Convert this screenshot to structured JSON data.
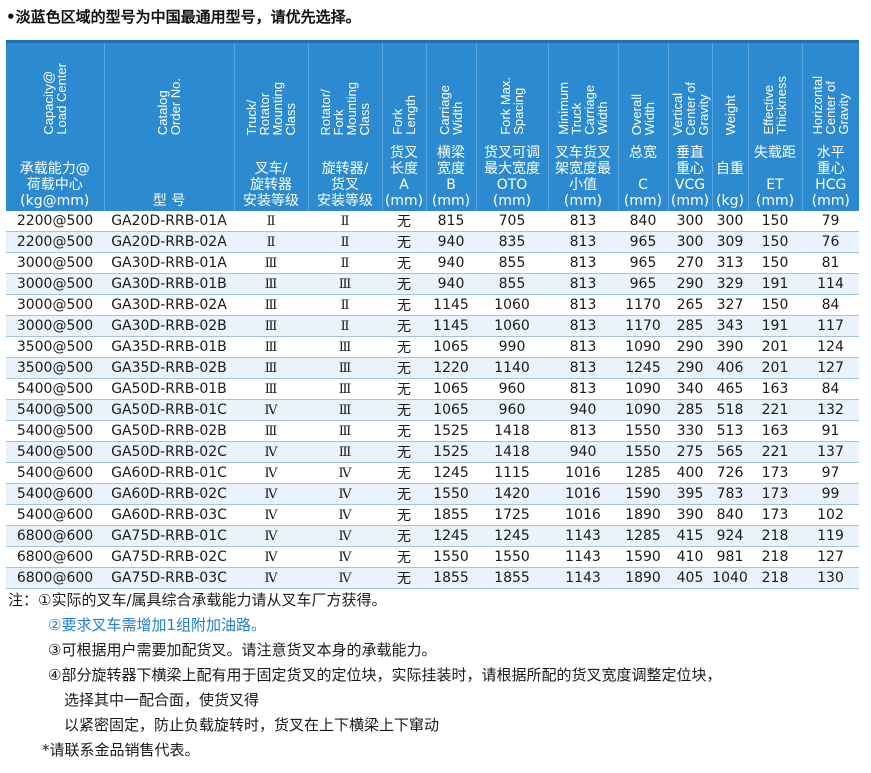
{
  "top_note": "•淡蓝色区域的型号为中国最通用型号，请优先选择。",
  "columns": [
    {
      "en": "Capacity@\nLoad Center",
      "cn": "承载能力@\n荷载中心\n(kg@mm)"
    },
    {
      "en": "Catalog\nOrder No.",
      "cn": "型 号"
    },
    {
      "en": "Truck/\nRotator\nMounting\nClass",
      "cn": "叉车/\n旋转器\n安装等级"
    },
    {
      "en": "Rotator/\nFork\nMounting\nClass",
      "cn": "旋转器/\n货叉\n安装等级"
    },
    {
      "en": "Fork\nLength",
      "cn": "货叉\n长度\nA\n(mm)"
    },
    {
      "en": "Carriage\nWidth",
      "cn": "横梁\n宽度\nB\n(mm)"
    },
    {
      "en": "Fork Max.\nSpacing",
      "cn": "货叉可调\n最大宽度\nOTO\n(mm)"
    },
    {
      "en": "Minimum\nTruck\nCarriage\nWidth",
      "cn": "叉车货叉\n架宽度最\n小值\n(mm)"
    },
    {
      "en": "Overall\nWidth",
      "cn": "总宽\n\nC\n(mm)"
    },
    {
      "en": "Vertical\nCenter of\nGravity",
      "cn": "垂直\n重心\nVCG\n(mm)"
    },
    {
      "en": "Weight",
      "cn": "自重\n\n(kg)"
    },
    {
      "en": "Effective\nThickness",
      "cn": "失载距\n\nET\n(mm)"
    },
    {
      "en": "Horizontal\nCenter of\nGravity",
      "cn": "水平\n重心\nHCG\n(mm)"
    }
  ],
  "rows": [
    [
      "2200@500",
      "GA20D-RRB-01A",
      "Ⅱ",
      "Ⅱ",
      "无",
      "815",
      "705",
      "813",
      "840",
      "300",
      "300",
      "150",
      "79"
    ],
    [
      "2200@500",
      "GA20D-RRB-02A",
      "Ⅱ",
      "Ⅱ",
      "无",
      "940",
      "835",
      "813",
      "965",
      "300",
      "309",
      "150",
      "76"
    ],
    [
      "3000@500",
      "GA30D-RRB-01A",
      "Ⅲ",
      "Ⅱ",
      "无",
      "940",
      "855",
      "813",
      "965",
      "270",
      "313",
      "150",
      "81"
    ],
    [
      "3000@500",
      "GA30D-RRB-01B",
      "Ⅲ",
      "Ⅲ",
      "无",
      "940",
      "855",
      "813",
      "965",
      "290",
      "329",
      "191",
      "114"
    ],
    [
      "3000@500",
      "GA30D-RRB-02A",
      "Ⅲ",
      "Ⅱ",
      "无",
      "1145",
      "1060",
      "813",
      "1170",
      "265",
      "327",
      "150",
      "84"
    ],
    [
      "3000@500",
      "GA30D-RRB-02B",
      "Ⅲ",
      "Ⅱ",
      "无",
      "1145",
      "1060",
      "813",
      "1170",
      "285",
      "343",
      "191",
      "117"
    ],
    [
      "3500@500",
      "GA35D-RRB-01B",
      "Ⅲ",
      "Ⅲ",
      "无",
      "1065",
      "990",
      "813",
      "1090",
      "290",
      "390",
      "201",
      "124"
    ],
    [
      "3500@500",
      "GA35D-RRB-02B",
      "Ⅲ",
      "Ⅲ",
      "无",
      "1220",
      "1140",
      "813",
      "1245",
      "290",
      "406",
      "201",
      "127"
    ],
    [
      "5400@500",
      "GA50D-RRB-01B",
      "Ⅲ",
      "Ⅲ",
      "无",
      "1065",
      "960",
      "813",
      "1090",
      "340",
      "465",
      "163",
      "84"
    ],
    [
      "5400@500",
      "GA50D-RRB-01C",
      "Ⅳ",
      "Ⅲ",
      "无",
      "1065",
      "960",
      "940",
      "1090",
      "285",
      "518",
      "221",
      "132"
    ],
    [
      "5400@500",
      "GA50D-RRB-02B",
      "Ⅲ",
      "Ⅲ",
      "无",
      "1525",
      "1418",
      "813",
      "1550",
      "330",
      "513",
      "163",
      "91"
    ],
    [
      "5400@500",
      "GA50D-RRB-02C",
      "Ⅳ",
      "Ⅲ",
      "无",
      "1525",
      "1418",
      "940",
      "1550",
      "275",
      "565",
      "221",
      "137"
    ],
    [
      "5400@600",
      "GA60D-RRB-01C",
      "Ⅳ",
      "Ⅳ",
      "无",
      "1245",
      "1115",
      "1016",
      "1285",
      "400",
      "726",
      "173",
      "97"
    ],
    [
      "5400@600",
      "GA60D-RRB-02C",
      "Ⅳ",
      "Ⅳ",
      "无",
      "1550",
      "1420",
      "1016",
      "1590",
      "395",
      "783",
      "173",
      "99"
    ],
    [
      "5400@600",
      "GA60D-RRB-03C",
      "Ⅳ",
      "Ⅳ",
      "无",
      "1855",
      "1725",
      "1016",
      "1890",
      "390",
      "840",
      "173",
      "102"
    ],
    [
      "6800@600",
      "GA75D-RRB-01C",
      "Ⅳ",
      "Ⅳ",
      "无",
      "1245",
      "1245",
      "1143",
      "1285",
      "415",
      "924",
      "218",
      "119"
    ],
    [
      "6800@600",
      "GA75D-RRB-02C",
      "Ⅳ",
      "Ⅳ",
      "无",
      "1550",
      "1550",
      "1143",
      "1590",
      "410",
      "981",
      "218",
      "127"
    ],
    [
      "6800@600",
      "GA75D-RRB-03C",
      "Ⅳ",
      "Ⅳ",
      "无",
      "1855",
      "1855",
      "1143",
      "1890",
      "405",
      "1040",
      "218",
      "130"
    ]
  ],
  "notes": [
    {
      "text": "注：①实际的叉车/属具综合承载能力请从叉车厂方获得。",
      "color": "#1a1a1a",
      "indent": 0
    },
    {
      "text": "②要求叉车需增加1组附加油路。",
      "color": "#1f7fd0",
      "indent": 40
    },
    {
      "text": "③可根据用户需要加配货叉。请注意货叉本身的承载能力。",
      "color": "#1a1a1a",
      "indent": 40
    },
    {
      "text": "④部分旋转器下横梁上配有用于固定货叉的定位块，实际挂装时，请根据所配的货叉宽度调整定位块，",
      "color": "#1a1a1a",
      "indent": 40
    },
    {
      "text": "选择其中一配合面，使货叉得",
      "color": "#1a1a1a",
      "indent": 56
    },
    {
      "text": "以紧密固定，防止负载旋转时，货叉在上下横梁上下窜动",
      "color": "#1a1a1a",
      "indent": 56
    },
    {
      "text": "*请联系金品销售代表。",
      "color": "#1a1a1a",
      "indent": 34
    }
  ]
}
